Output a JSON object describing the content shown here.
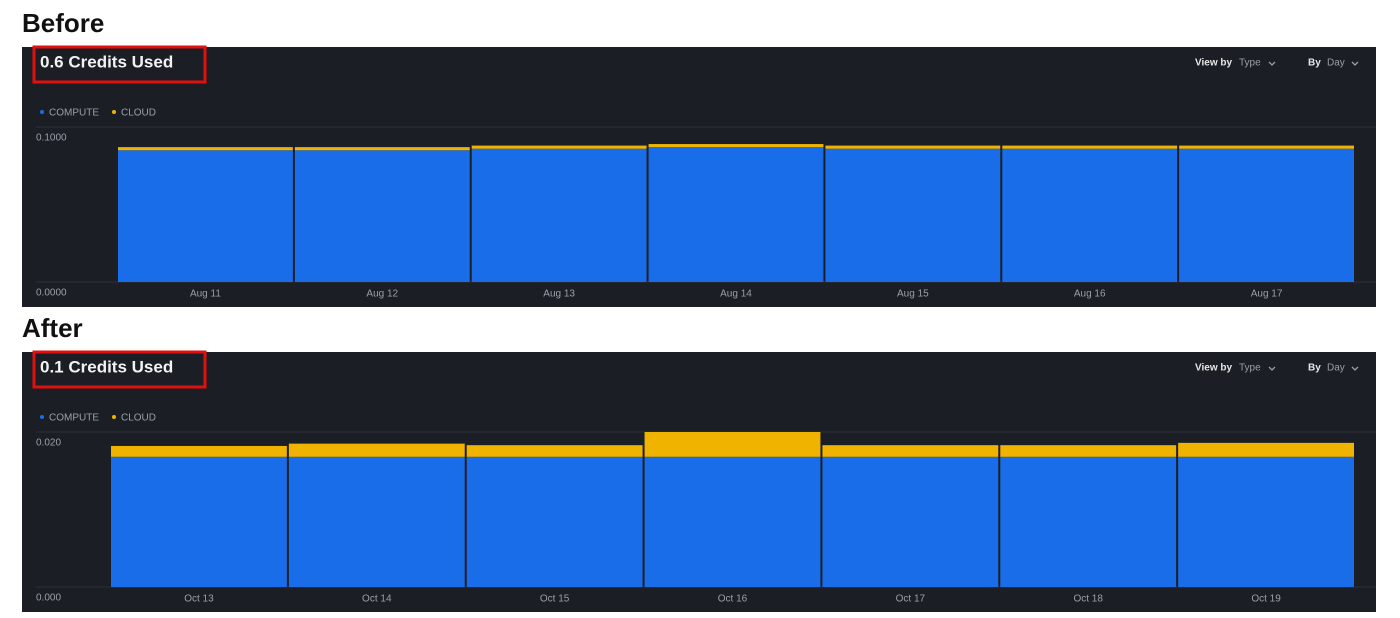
{
  "panels": [
    {
      "heading": "Before",
      "summary": "0.6 Credits Used",
      "view_by_label": "View by",
      "view_by_value": "Type",
      "by_label": "By",
      "by_value": "Day"
    },
    {
      "heading": "After",
      "summary": "0.1 Credits Used",
      "view_by_label": "View by",
      "view_by_value": "Type",
      "by_label": "By",
      "by_value": "Day"
    }
  ],
  "chart_data": [
    {
      "type": "stacked-bar",
      "categories": [
        "Aug 11",
        "Aug 12",
        "Aug 13",
        "Aug 14",
        "Aug 15",
        "Aug 16",
        "Aug 17"
      ],
      "series": [
        {
          "name": "COMPUTE",
          "color": "#1a6de8",
          "values": [
            0.085,
            0.085,
            0.086,
            0.087,
            0.086,
            0.086,
            0.086
          ]
        },
        {
          "name": "CLOUD",
          "color": "#f0b400",
          "values": [
            0.002,
            0.002,
            0.002,
            0.002,
            0.002,
            0.002,
            0.002
          ]
        }
      ],
      "ylim": [
        0,
        0.1
      ],
      "yticks": [
        {
          "value": 0,
          "label": "0.0000"
        },
        {
          "value": 0.1,
          "label": "0.1000"
        }
      ],
      "grid": true,
      "legend": "top-left"
    },
    {
      "type": "stacked-bar",
      "categories": [
        "Oct 13",
        "Oct 14",
        "Oct 15",
        "Oct 16",
        "Oct 17",
        "Oct 18",
        "Oct 19"
      ],
      "series": [
        {
          "name": "COMPUTE",
          "color": "#1a6de8",
          "values": [
            0.0168,
            0.0168,
            0.0168,
            0.0168,
            0.0168,
            0.0168,
            0.0168
          ]
        },
        {
          "name": "CLOUD",
          "color": "#f0b400",
          "values": [
            0.0014,
            0.0017,
            0.0015,
            0.0032,
            0.0015,
            0.0015,
            0.0018
          ]
        }
      ],
      "ylim": [
        0,
        0.02
      ],
      "yticks": [
        {
          "value": 0,
          "label": "0.000"
        },
        {
          "value": 0.02,
          "label": "0.020"
        }
      ],
      "grid": true,
      "legend": "top-left"
    }
  ]
}
